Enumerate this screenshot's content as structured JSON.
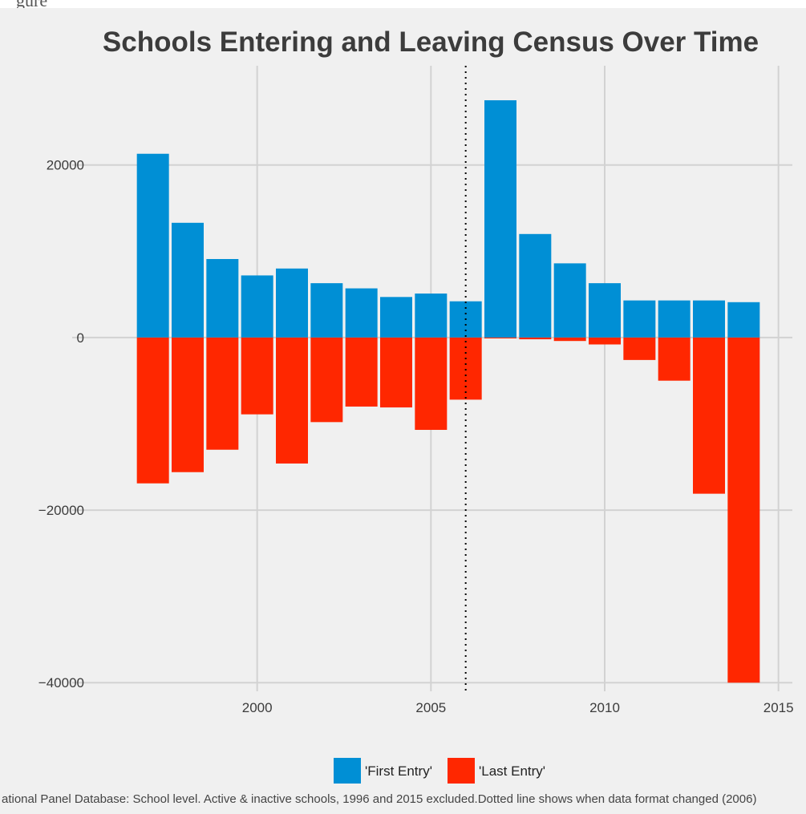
{
  "chart_data": {
    "type": "bar",
    "title": "Schools Entering and Leaving Census Over Time",
    "xlabel": "",
    "ylabel": "",
    "x_ticks": [
      "2000",
      "2005",
      "2010",
      "2015"
    ],
    "y_ticks": [
      "20000",
      "0",
      "−20000",
      "−40000"
    ],
    "xlim": [
      1995.6,
      2015.4
    ],
    "ylim": [
      -41000,
      31500
    ],
    "grid": true,
    "legend_position": "bottom",
    "categories": [
      1997,
      1998,
      1999,
      2000,
      2001,
      2002,
      2003,
      2004,
      2005,
      2006,
      2007,
      2008,
      2009,
      2010,
      2011,
      2012,
      2013,
      2014
    ],
    "series": [
      {
        "name": "'First Entry'",
        "color": "#008fd5",
        "values": [
          21300,
          13300,
          9100,
          7200,
          8000,
          6300,
          5700,
          4700,
          5100,
          4200,
          27500,
          12000,
          8600,
          6300,
          4300,
          4300,
          4300,
          4100
        ]
      },
      {
        "name": "'Last Entry'",
        "color": "#ff2700",
        "values": [
          -16900,
          -15600,
          -13000,
          -8900,
          -14600,
          -9800,
          -8000,
          -8100,
          -10700,
          -7200,
          -100,
          -200,
          -400,
          -800,
          -2600,
          -5000,
          -18100,
          -40000
        ]
      }
    ],
    "reference_line": {
      "x": 2006,
      "style": "dotted"
    },
    "caption": "ational Panel Database: School level. Active & inactive schools, 1996 and 2015 excluded.Dotted line shows when data format changed (2006)"
  },
  "top_fragment_text": "gure"
}
